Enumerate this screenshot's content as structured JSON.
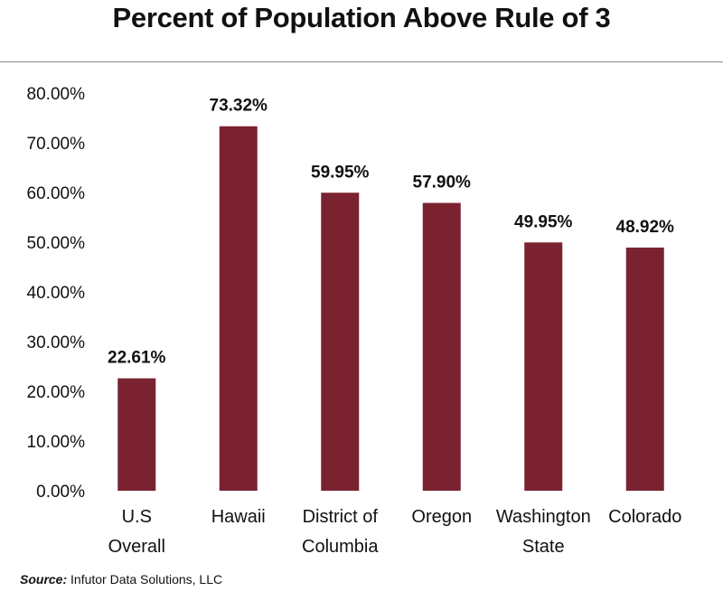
{
  "title": "Percent of Population Above Rule of 3",
  "source": {
    "label": "Source:",
    "text": "Infutor Data Solutions, LLC"
  },
  "colors": {
    "bar": "#7a2230",
    "text": "#111111",
    "rule": "#8a8a8a"
  },
  "chart_data": {
    "type": "bar",
    "title": "Percent of Population Above Rule of 3",
    "categories": [
      [
        "U.S",
        "Overall"
      ],
      [
        "Hawaii"
      ],
      [
        "District of",
        "Columbia"
      ],
      [
        "Oregon"
      ],
      [
        "Washington",
        "State"
      ],
      [
        "Colorado"
      ]
    ],
    "values": [
      22.61,
      73.32,
      59.95,
      57.9,
      49.95,
      48.92
    ],
    "data_labels": [
      "22.61%",
      "73.32%",
      "59.95%",
      "57.90%",
      "49.95%",
      "48.92%"
    ],
    "yticks": [
      "0.00%",
      "10.00%",
      "20.00%",
      "30.00%",
      "40.00%",
      "50.00%",
      "60.00%",
      "70.00%",
      "80.00%"
    ],
    "ylim": [
      0,
      80
    ],
    "xlabel": "",
    "ylabel": "",
    "grid": false,
    "legend": "none"
  }
}
